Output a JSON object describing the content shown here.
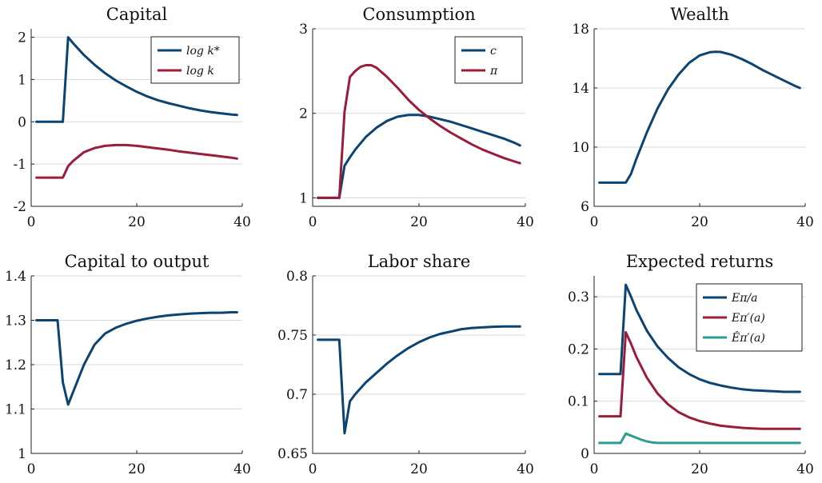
{
  "chart_data": [
    {
      "type": "line",
      "title": "Capital",
      "xlim": [
        0,
        40
      ],
      "ylim": [
        -2,
        2.2
      ],
      "xticks": [
        0,
        20,
        40
      ],
      "yticks": [
        -2,
        -1,
        0,
        1,
        2
      ],
      "ytick_labels": [
        "-2",
        "-1",
        "0",
        "1",
        "2"
      ],
      "grid": "horizontal",
      "legend": "top-right",
      "series": [
        {
          "name": "log k*",
          "color": "#0b4472",
          "x": [
            1,
            2,
            3,
            4,
            5,
            6,
            7,
            8,
            10,
            12,
            14,
            16,
            18,
            20,
            22,
            24,
            26,
            28,
            30,
            32,
            34,
            36,
            38,
            39
          ],
          "y": [
            0,
            0,
            0,
            0,
            0,
            0,
            2.0,
            1.85,
            1.58,
            1.35,
            1.15,
            0.98,
            0.84,
            0.71,
            0.6,
            0.51,
            0.44,
            0.38,
            0.32,
            0.27,
            0.23,
            0.2,
            0.17,
            0.16
          ]
        },
        {
          "name": "log k",
          "color": "#9a1d3a",
          "x": [
            1,
            2,
            3,
            4,
            5,
            6,
            7,
            8,
            10,
            12,
            14,
            16,
            18,
            20,
            22,
            24,
            26,
            28,
            30,
            32,
            34,
            36,
            38,
            39
          ],
          "y": [
            -1.32,
            -1.32,
            -1.32,
            -1.32,
            -1.32,
            -1.32,
            -1.05,
            -0.92,
            -0.72,
            -0.62,
            -0.57,
            -0.55,
            -0.55,
            -0.57,
            -0.6,
            -0.63,
            -0.66,
            -0.7,
            -0.73,
            -0.76,
            -0.79,
            -0.82,
            -0.85,
            -0.87
          ]
        }
      ]
    },
    {
      "type": "line",
      "title": "Consumption",
      "xlim": [
        0,
        40
      ],
      "ylim": [
        0.9,
        3
      ],
      "xticks": [
        0,
        20,
        40
      ],
      "yticks": [
        1,
        2,
        3
      ],
      "ytick_labels": [
        "1",
        "2",
        "3"
      ],
      "grid": "horizontal",
      "legend": "top-right",
      "series": [
        {
          "name": "c",
          "color": "#0b4472",
          "x": [
            1,
            2,
            3,
            4,
            5,
            6,
            7,
            8,
            10,
            12,
            14,
            16,
            18,
            20,
            22,
            24,
            26,
            28,
            30,
            32,
            34,
            36,
            38,
            39
          ],
          "y": [
            1.0,
            1.0,
            1.0,
            1.0,
            1.0,
            1.38,
            1.48,
            1.57,
            1.72,
            1.83,
            1.91,
            1.96,
            1.98,
            1.98,
            1.96,
            1.93,
            1.9,
            1.86,
            1.82,
            1.78,
            1.74,
            1.7,
            1.65,
            1.62
          ]
        },
        {
          "name": "π",
          "color": "#9a1d3a",
          "x": [
            1,
            2,
            3,
            4,
            5,
            6,
            7,
            8,
            9,
            10,
            11,
            12,
            14,
            16,
            18,
            20,
            22,
            24,
            26,
            28,
            30,
            32,
            34,
            36,
            38,
            39
          ],
          "y": [
            1.0,
            1.0,
            1.0,
            1.0,
            1.0,
            2.02,
            2.43,
            2.5,
            2.55,
            2.57,
            2.57,
            2.54,
            2.43,
            2.3,
            2.16,
            2.04,
            1.94,
            1.85,
            1.77,
            1.7,
            1.63,
            1.57,
            1.52,
            1.47,
            1.43,
            1.41
          ]
        }
      ]
    },
    {
      "type": "line",
      "title": "Wealth",
      "xlim": [
        0,
        40
      ],
      "ylim": [
        6,
        18
      ],
      "xticks": [
        0,
        20,
        40
      ],
      "yticks": [
        6,
        10,
        14,
        18
      ],
      "ytick_labels": [
        "6",
        "10",
        "14",
        "18"
      ],
      "grid": "horizontal",
      "series": [
        {
          "name": "",
          "color": "#0b4472",
          "x": [
            1,
            2,
            3,
            4,
            5,
            6,
            7,
            8,
            10,
            12,
            14,
            16,
            18,
            20,
            22,
            23,
            24,
            26,
            28,
            30,
            32,
            34,
            36,
            38,
            39
          ],
          "y": [
            7.6,
            7.6,
            7.6,
            7.6,
            7.6,
            7.6,
            8.2,
            9.2,
            11.0,
            12.6,
            13.9,
            14.9,
            15.7,
            16.2,
            16.42,
            16.45,
            16.43,
            16.25,
            15.95,
            15.6,
            15.2,
            14.85,
            14.5,
            14.15,
            14.0
          ]
        }
      ]
    },
    {
      "type": "line",
      "title": "Capital to output",
      "xlim": [
        0,
        40
      ],
      "ylim": [
        1,
        1.4
      ],
      "xticks": [
        0,
        20,
        40
      ],
      "yticks": [
        1,
        1.1,
        1.2,
        1.3,
        1.4
      ],
      "ytick_labels": [
        "1",
        "1.1",
        "1.2",
        "1.3",
        "1.4"
      ],
      "grid": "horizontal",
      "series": [
        {
          "name": "",
          "color": "#0b4472",
          "x": [
            1,
            2,
            3,
            4,
            5,
            6,
            7,
            8,
            10,
            12,
            14,
            16,
            18,
            20,
            22,
            24,
            26,
            28,
            30,
            32,
            34,
            36,
            38,
            39
          ],
          "y": [
            1.3,
            1.3,
            1.3,
            1.3,
            1.3,
            1.16,
            1.11,
            1.14,
            1.2,
            1.245,
            1.27,
            1.283,
            1.292,
            1.299,
            1.304,
            1.308,
            1.311,
            1.313,
            1.315,
            1.316,
            1.317,
            1.317,
            1.318,
            1.318
          ]
        }
      ]
    },
    {
      "type": "line",
      "title": "Labor share",
      "xlim": [
        0,
        40
      ],
      "ylim": [
        0.65,
        0.8
      ],
      "xticks": [
        0,
        20,
        40
      ],
      "yticks": [
        0.65,
        0.7,
        0.75,
        0.8
      ],
      "ytick_labels": [
        "0.65",
        "0.7",
        "0.75",
        "0.8"
      ],
      "grid": "horizontal",
      "series": [
        {
          "name": "",
          "color": "#0b4472",
          "x": [
            1,
            2,
            3,
            4,
            5,
            6,
            7,
            8,
            10,
            12,
            14,
            16,
            18,
            20,
            22,
            24,
            26,
            28,
            30,
            32,
            34,
            36,
            38,
            39
          ],
          "y": [
            0.746,
            0.746,
            0.746,
            0.746,
            0.746,
            0.667,
            0.694,
            0.7,
            0.71,
            0.718,
            0.726,
            0.733,
            0.739,
            0.744,
            0.748,
            0.751,
            0.753,
            0.755,
            0.756,
            0.7565,
            0.757,
            0.7572,
            0.7573,
            0.7573
          ]
        }
      ]
    },
    {
      "type": "line",
      "title": "Expected returns",
      "xlim": [
        0,
        40
      ],
      "ylim": [
        0,
        0.34
      ],
      "xticks": [
        0,
        20,
        40
      ],
      "yticks": [
        0,
        0.1,
        0.2,
        0.3
      ],
      "ytick_labels": [
        "0",
        "0.1",
        "0.2",
        "0.3"
      ],
      "grid": "horizontal",
      "legend": "top-right",
      "series": [
        {
          "name": "Eπ/a",
          "color": "#0b4472",
          "x": [
            1,
            2,
            3,
            4,
            5,
            6,
            7,
            8,
            10,
            12,
            14,
            16,
            18,
            20,
            22,
            24,
            26,
            28,
            30,
            32,
            34,
            36,
            38,
            39
          ],
          "y": [
            0.152,
            0.152,
            0.152,
            0.152,
            0.152,
            0.323,
            0.3,
            0.275,
            0.235,
            0.205,
            0.183,
            0.165,
            0.152,
            0.142,
            0.135,
            0.13,
            0.126,
            0.123,
            0.121,
            0.12,
            0.119,
            0.118,
            0.118,
            0.118
          ]
        },
        {
          "name": "Eπ′(a)",
          "color": "#9a1d3a",
          "x": [
            1,
            2,
            3,
            4,
            5,
            6,
            7,
            8,
            10,
            12,
            14,
            16,
            18,
            20,
            22,
            24,
            26,
            28,
            30,
            32,
            34,
            36,
            38,
            39
          ],
          "y": [
            0.071,
            0.071,
            0.071,
            0.071,
            0.071,
            0.232,
            0.21,
            0.185,
            0.145,
            0.115,
            0.094,
            0.079,
            0.069,
            0.062,
            0.057,
            0.053,
            0.051,
            0.049,
            0.048,
            0.047,
            0.047,
            0.047,
            0.047,
            0.047
          ]
        },
        {
          "name": "Êπ′(a)",
          "color": "#2a9d94",
          "x": [
            1,
            2,
            3,
            4,
            5,
            6,
            7,
            8,
            9,
            10,
            11,
            12,
            14,
            16,
            18,
            20,
            24,
            28,
            32,
            36,
            39
          ],
          "y": [
            0.02,
            0.02,
            0.02,
            0.02,
            0.02,
            0.038,
            0.034,
            0.03,
            0.026,
            0.023,
            0.021,
            0.02,
            0.02,
            0.02,
            0.02,
            0.02,
            0.02,
            0.02,
            0.02,
            0.02,
            0.02
          ]
        }
      ]
    }
  ]
}
